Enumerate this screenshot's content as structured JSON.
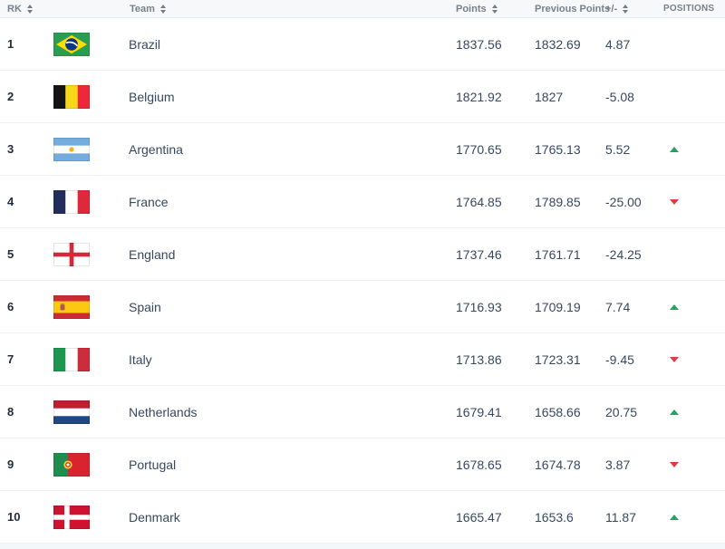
{
  "table": {
    "columns": [
      {
        "label": "RK",
        "sortable": true
      },
      {
        "label": "Team",
        "sortable": true
      },
      {
        "label": "Points",
        "sortable": true
      },
      {
        "label": "Previous Points",
        "sortable": false
      },
      {
        "label": "+/-",
        "sortable": true
      },
      {
        "label": "POSITIONS",
        "sortable": false
      }
    ],
    "rows": [
      {
        "rank": "1",
        "team": "Brazil",
        "flag": "brazil",
        "points": "1837.56",
        "previous_points": "1832.69",
        "delta": "4.87",
        "movement": "none"
      },
      {
        "rank": "2",
        "team": "Belgium",
        "flag": "belgium",
        "points": "1821.92",
        "previous_points": "1827",
        "delta": "-5.08",
        "movement": "none"
      },
      {
        "rank": "3",
        "team": "Argentina",
        "flag": "argentina",
        "points": "1770.65",
        "previous_points": "1765.13",
        "delta": "5.52",
        "movement": "up"
      },
      {
        "rank": "4",
        "team": "France",
        "flag": "france",
        "points": "1764.85",
        "previous_points": "1789.85",
        "delta": "-25.00",
        "movement": "down"
      },
      {
        "rank": "5",
        "team": "England",
        "flag": "england",
        "points": "1737.46",
        "previous_points": "1761.71",
        "delta": "-24.25",
        "movement": "none"
      },
      {
        "rank": "6",
        "team": "Spain",
        "flag": "spain",
        "points": "1716.93",
        "previous_points": "1709.19",
        "delta": "7.74",
        "movement": "up"
      },
      {
        "rank": "7",
        "team": "Italy",
        "flag": "italy",
        "points": "1713.86",
        "previous_points": "1723.31",
        "delta": "-9.45",
        "movement": "down"
      },
      {
        "rank": "8",
        "team": "Netherlands",
        "flag": "netherlands",
        "points": "1679.41",
        "previous_points": "1658.66",
        "delta": "20.75",
        "movement": "up"
      },
      {
        "rank": "9",
        "team": "Portugal",
        "flag": "portugal",
        "points": "1678.65",
        "previous_points": "1674.78",
        "delta": "3.87",
        "movement": "down"
      },
      {
        "rank": "10",
        "team": "Denmark",
        "flag": "denmark",
        "points": "1665.47",
        "previous_points": "1653.6",
        "delta": "11.87",
        "movement": "up"
      }
    ]
  },
  "colors": {
    "header_bg": "#f7f8f9",
    "header_text": "#76818c",
    "row_border": "#edeff2",
    "rank_text": "#222c3c",
    "team_text": "#364861",
    "number_text": "#364861",
    "movement_up": "#27a15f",
    "movement_down": "#e03a40"
  }
}
